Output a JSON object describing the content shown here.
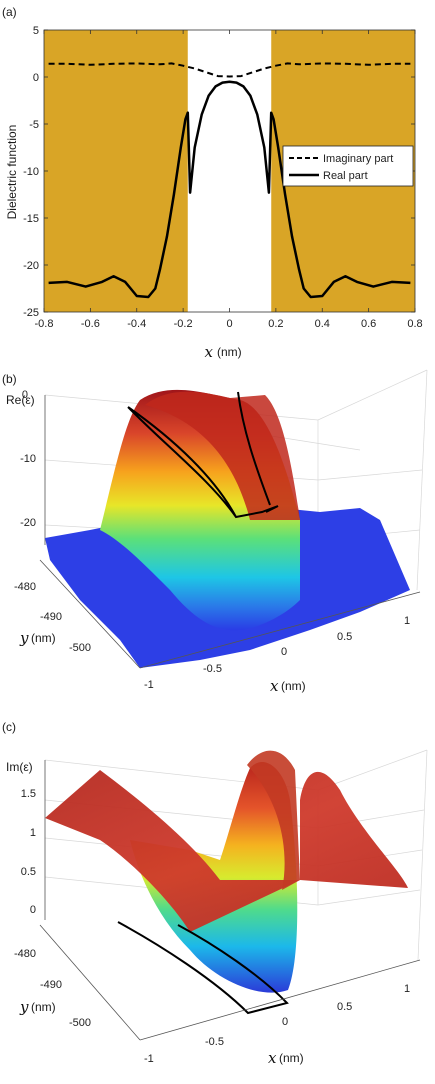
{
  "colors": {
    "metal_fill": "#d9a526",
    "gap_fill": "#ffffff",
    "line": "#000000",
    "surface_high": "#c0281c",
    "surface_low": "#2a3ce6",
    "floor_plane": "#c13528"
  },
  "chart_data": [
    {
      "panel": "(a)",
      "type": "line",
      "xlabel_symbol": "x",
      "xlabel_unit": "(nm)",
      "ylabel": "Dielectric function",
      "xlim": [
        -0.8,
        0.8
      ],
      "ylim": [
        -25,
        5
      ],
      "xticks": [
        "-0.8",
        "-0.6",
        "-0.4",
        "-0.2",
        "0",
        "0.2",
        "0.4",
        "0.6",
        "0.8"
      ],
      "yticks": [
        "5",
        "0",
        "-5",
        "-10",
        "-15",
        "-20",
        "-25"
      ],
      "shaded_regions": [
        [
          -0.8,
          -0.18
        ],
        [
          0.18,
          0.8
        ]
      ],
      "legend": [
        "Imaginary part",
        "Real part"
      ],
      "legend_position": "right",
      "series": [
        {
          "name": "Imaginary part",
          "style": "dashed",
          "x": [
            -0.78,
            -0.7,
            -0.6,
            -0.5,
            -0.4,
            -0.3,
            -0.25,
            -0.2,
            -0.15,
            -0.1,
            -0.05,
            0,
            0.05,
            0.1,
            0.15,
            0.2,
            0.25,
            0.3,
            0.4,
            0.5,
            0.6,
            0.7,
            0.78
          ],
          "y": [
            1.4,
            1.4,
            1.3,
            1.4,
            1.45,
            1.35,
            1.45,
            1.2,
            0.9,
            0.5,
            0.1,
            0.05,
            0.1,
            0.5,
            0.9,
            1.2,
            1.45,
            1.35,
            1.45,
            1.4,
            1.3,
            1.4,
            1.4
          ]
        },
        {
          "name": "Real part",
          "style": "solid",
          "x": [
            -0.78,
            -0.7,
            -0.62,
            -0.55,
            -0.5,
            -0.45,
            -0.4,
            -0.35,
            -0.32,
            -0.3,
            -0.27,
            -0.24,
            -0.21,
            -0.19,
            -0.18,
            -0.17,
            -0.15,
            -0.12,
            -0.09,
            -0.06,
            -0.03,
            0,
            0.03,
            0.06,
            0.09,
            0.12,
            0.15,
            0.17,
            0.18,
            0.19,
            0.21,
            0.24,
            0.27,
            0.3,
            0.32,
            0.35,
            0.4,
            0.45,
            0.5,
            0.55,
            0.62,
            0.7,
            0.78
          ],
          "y": [
            -21.9,
            -21.8,
            -22.3,
            -21.8,
            -21.2,
            -21.8,
            -23.3,
            -23.4,
            -22.5,
            -20.5,
            -17.0,
            -12.5,
            -7.5,
            -4.5,
            -3.8,
            -12.3,
            -7.5,
            -4.0,
            -2.0,
            -1.0,
            -0.6,
            -0.5,
            -0.6,
            -1.0,
            -2.0,
            -4.0,
            -7.5,
            -12.3,
            -3.8,
            -4.5,
            -7.5,
            -12.5,
            -17.0,
            -20.5,
            -22.5,
            -23.4,
            -23.3,
            -21.8,
            -21.2,
            -21.8,
            -22.3,
            -21.8,
            -21.9
          ]
        }
      ]
    },
    {
      "panel": "(b)",
      "type": "surface",
      "zlabel": "Re(ε)",
      "xlabel_symbol": "x",
      "xlabel_unit": "(nm)",
      "ylabel_symbol": "y",
      "ylabel_unit": "(nm)",
      "xlim": [
        -1,
        1
      ],
      "ylim": [
        -505,
        -475
      ],
      "zlim": [
        -25,
        0
      ],
      "xticks": [
        "-1",
        "-0.5",
        "0",
        "0.5",
        "1"
      ],
      "yticks": [
        "-480",
        "-490",
        "-500"
      ],
      "zticks": [
        "0",
        "-10",
        "-20"
      ]
    },
    {
      "panel": "(c)",
      "type": "surface",
      "zlabel": "Im(ε)",
      "xlabel_symbol": "x",
      "xlabel_unit": "(nm)",
      "ylabel_symbol": "y",
      "ylabel_unit": "(nm)",
      "xlim": [
        -1,
        1
      ],
      "ylim": [
        -505,
        -475
      ],
      "zlim": [
        0,
        1.5
      ],
      "xticks": [
        "-1",
        "-0.5",
        "0",
        "0.5",
        "1"
      ],
      "yticks": [
        "-480",
        "-490",
        "-500"
      ],
      "zticks": [
        "1.5",
        "1",
        "0.5",
        "0"
      ]
    }
  ]
}
